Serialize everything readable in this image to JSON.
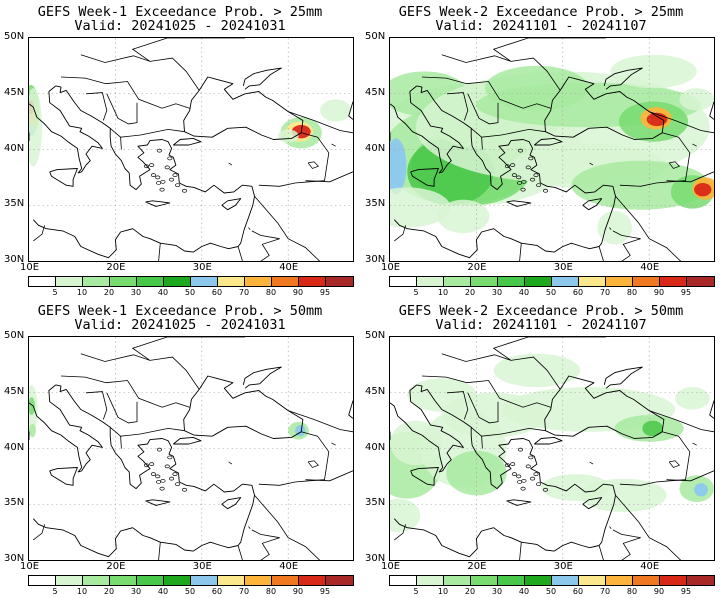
{
  "panels": [
    {
      "title": "GEFS Week-1 Exceedance Prob. > 25mm",
      "valid": "Valid: 20241025 - 20241031"
    },
    {
      "title": "GEFS Week-2 Exceedance Prob. > 25mm",
      "valid": "Valid: 20241101 - 20241107"
    },
    {
      "title": "GEFS Week-1 Exceedance Prob. > 50mm",
      "valid": "Valid: 20241025 - 20241031"
    },
    {
      "title": "GEFS Week-2 Exceedance Prob. > 50mm",
      "valid": "Valid: 20241101 - 20241107"
    }
  ],
  "lat_labels": [
    "50N",
    "45N",
    "40N",
    "35N",
    "30N"
  ],
  "lon_labels": [
    "10E",
    "20E",
    "30E",
    "40E"
  ],
  "colorbar": {
    "labels": [
      "5",
      "10",
      "20",
      "30",
      "40",
      "50",
      "60",
      "70",
      "80",
      "90",
      "95"
    ],
    "colors": [
      "#ffffff",
      "#d8f5d2",
      "#a8eaa0",
      "#78dc70",
      "#48c848",
      "#1ea81e",
      "#8cc8ec",
      "#fce88c",
      "#fcb43c",
      "#f07820",
      "#d82818",
      "#a82828"
    ]
  },
  "colors": {
    "coast": "#000000",
    "grid": "#a0a0a0"
  }
}
